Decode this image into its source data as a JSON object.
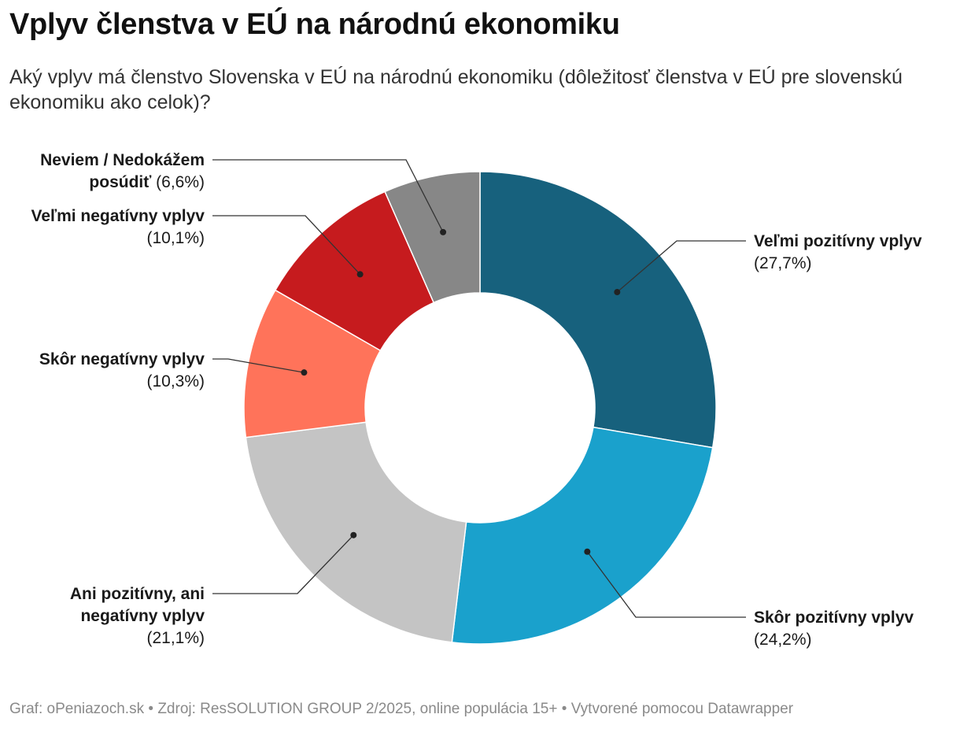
{
  "title": "Vplyv členstva v EÚ na národnú ekonomiku",
  "subtitle": "Aký vplyv má členstvo Slovenska v EÚ na národnú ekonomiku (dôležitosť členstva v EÚ pre slovenskú ekonomiku ako celok)?",
  "footer": {
    "graf": "Graf: oPeniazoch.sk",
    "zdroj": "Zdroj: ResSOLUTION GROUP 2/2025, online populácia 15+",
    "tool": "Vytvorené pomocou Datawrapper",
    "separator": "•"
  },
  "chart_data": {
    "type": "pie",
    "style": "donut",
    "title": "Vplyv členstva v EÚ na národnú ekonomiku",
    "slices": [
      {
        "label": "Veľmi pozitívny vplyv",
        "value": 27.7,
        "display": "(27,7%)",
        "color": "#17617d"
      },
      {
        "label": "Skôr pozitívny vplyv",
        "value": 24.2,
        "display": "(24,2%)",
        "color": "#1aa1cc"
      },
      {
        "label": "Ani pozitívny, ani negatívny vplyv",
        "value": 21.1,
        "display": "(21,1%)",
        "color": "#c4c4c4"
      },
      {
        "label": "Skôr negatívny vplyv",
        "value": 10.3,
        "display": "(10,3%)",
        "color": "#ff735a"
      },
      {
        "label": "Veľmi negatívny vplyv",
        "value": 10.1,
        "display": "(10,1%)",
        "color": "#c61b1e"
      },
      {
        "label": "Neviem / Nedokážem posúdiť",
        "value": 6.6,
        "display": "(6,6%)",
        "color": "#878787"
      }
    ]
  }
}
